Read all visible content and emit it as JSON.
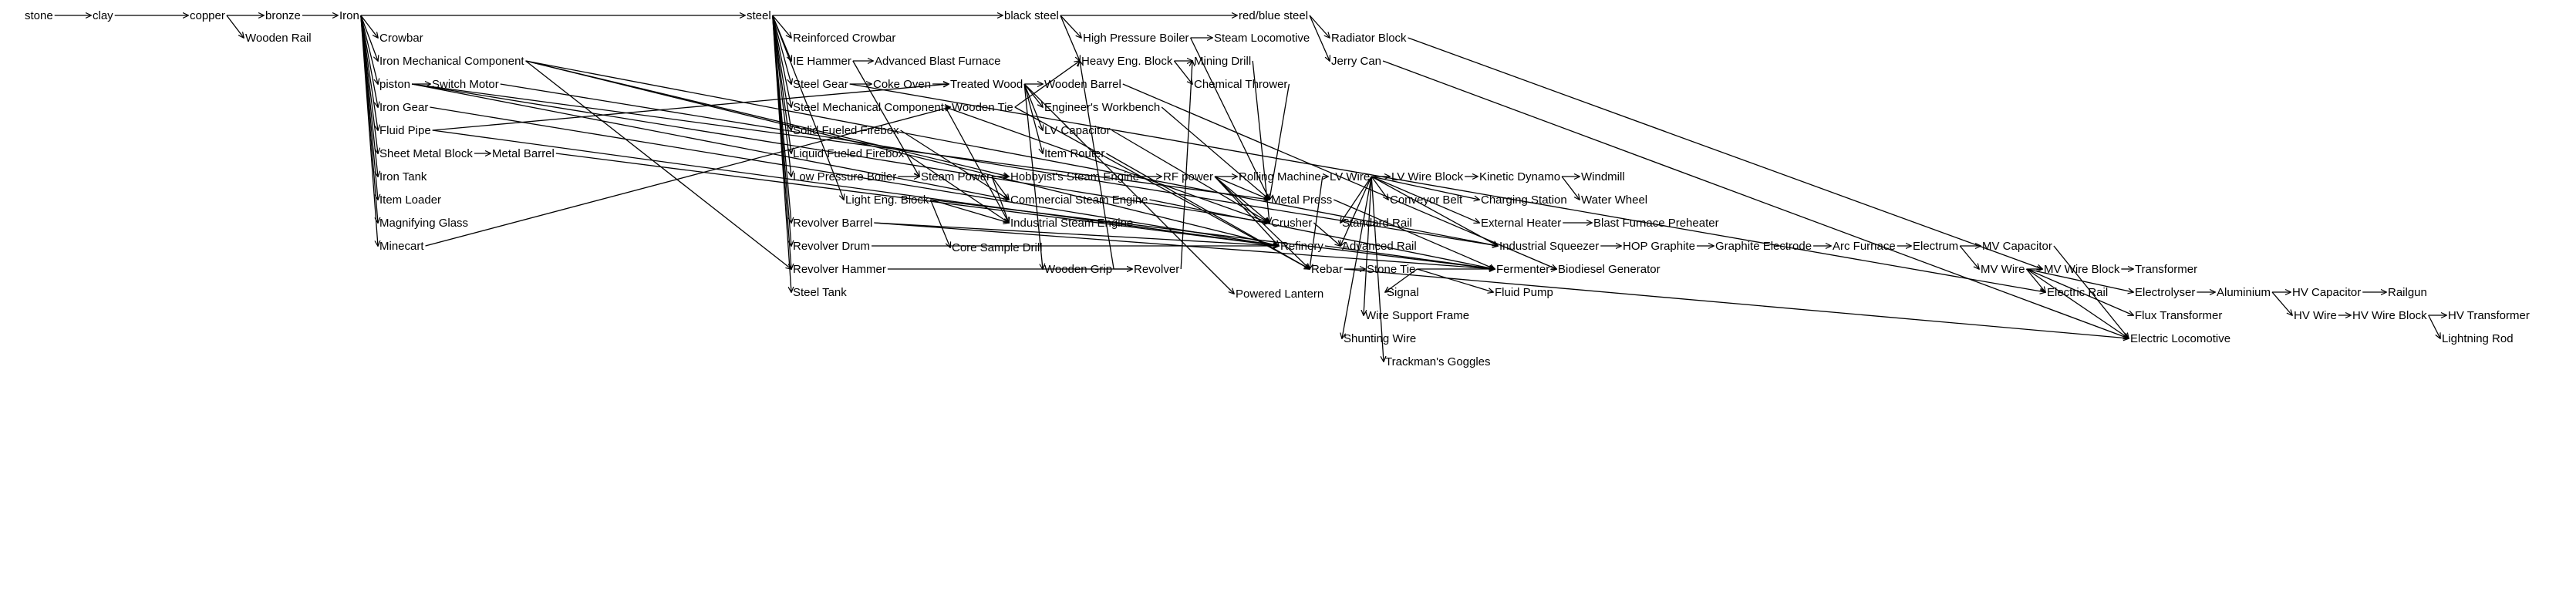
{
  "nodes": [
    {
      "id": "stone",
      "label": "stone"
    },
    {
      "id": "clay",
      "label": "clay"
    },
    {
      "id": "copper",
      "label": "copper"
    },
    {
      "id": "bronze",
      "label": "bronze"
    },
    {
      "id": "iron",
      "label": "Iron"
    },
    {
      "id": "wooden_rail",
      "label": "Wooden Rail"
    },
    {
      "id": "crowbar",
      "label": "Crowbar"
    },
    {
      "id": "iron_mech",
      "label": "Iron Mechanical Component"
    },
    {
      "id": "piston",
      "label": "piston"
    },
    {
      "id": "switch_motor",
      "label": "Switch Motor"
    },
    {
      "id": "iron_gear",
      "label": "Iron Gear"
    },
    {
      "id": "fluid_pipe",
      "label": "Fluid Pipe"
    },
    {
      "id": "sheet_metal_block",
      "label": "Sheet Metal Block"
    },
    {
      "id": "metal_barrel",
      "label": "Metal Barrel"
    },
    {
      "id": "iron_tank",
      "label": "Iron Tank"
    },
    {
      "id": "item_loader",
      "label": "Item Loader"
    },
    {
      "id": "magnifying_glass",
      "label": "Magnifying Glass"
    },
    {
      "id": "minecart",
      "label": "Minecart"
    },
    {
      "id": "steel",
      "label": "steel"
    },
    {
      "id": "reinforced_crowbar",
      "label": "Reinforced Crowbar"
    },
    {
      "id": "ie_hammer",
      "label": "IE Hammer"
    },
    {
      "id": "adv_blast_furnace",
      "label": "Advanced Blast Furnace"
    },
    {
      "id": "steel_gear",
      "label": "Steel Gear"
    },
    {
      "id": "coke_oven",
      "label": "Coke Oven"
    },
    {
      "id": "treated_wood",
      "label": "Treated Wood"
    },
    {
      "id": "steel_mech",
      "label": "Steel Mechanical Component"
    },
    {
      "id": "wooden_tie",
      "label": "Wooden Tie"
    },
    {
      "id": "solid_firebox",
      "label": "Solid Fueled Firebox"
    },
    {
      "id": "liquid_firebox",
      "label": "Liquid Fueled Firebox"
    },
    {
      "id": "low_pressure_boiler",
      "label": "Low Pressure Boiler"
    },
    {
      "id": "steam_power",
      "label": "Steam Power"
    },
    {
      "id": "light_eng_block",
      "label": "Light Eng. Block"
    },
    {
      "id": "revolver_barrel",
      "label": "Revolver Barrel"
    },
    {
      "id": "revolver_drum",
      "label": "Revolver Drum"
    },
    {
      "id": "revolver_hammer",
      "label": "Revolver Hammer"
    },
    {
      "id": "steel_tank",
      "label": "Steel Tank"
    },
    {
      "id": "core_sample_drill",
      "label": "Core Sample Drill"
    },
    {
      "id": "black_steel",
      "label": "black steel"
    },
    {
      "id": "high_pressure_boiler",
      "label": "High Pressure Boiler"
    },
    {
      "id": "steam_locomotive",
      "label": "Steam Locomotive"
    },
    {
      "id": "heavy_eng_block",
      "label": "Heavy Eng. Block"
    },
    {
      "id": "mining_drill",
      "label": "Mining Drill"
    },
    {
      "id": "chemical_thrower",
      "label": "Chemical Thrower"
    },
    {
      "id": "wooden_barrel",
      "label": "Wooden Barrel"
    },
    {
      "id": "engineers_workbench",
      "label": "Engineer's Workbench"
    },
    {
      "id": "lv_capacitor",
      "label": "LV Capacitor"
    },
    {
      "id": "item_router",
      "label": "Item Router"
    },
    {
      "id": "hobbyists_steam_engine",
      "label": "Hobbyist's Steam Engine"
    },
    {
      "id": "commercial_steam_engine",
      "label": "Commercial Steam Engine"
    },
    {
      "id": "industrial_steam_engine",
      "label": "Industrial Steam Engine"
    },
    {
      "id": "wooden_grip",
      "label": "Wooden Grip"
    },
    {
      "id": "revolver",
      "label": "Revolver"
    },
    {
      "id": "rf_power",
      "label": "RF power"
    },
    {
      "id": "powered_lantern",
      "label": "Powered Lantern"
    },
    {
      "id": "red_blue_steel",
      "label": "red/blue steel"
    },
    {
      "id": "radiator_block",
      "label": "Radiator Block"
    },
    {
      "id": "jerry_can",
      "label": "Jerry Can"
    },
    {
      "id": "rolling_machine",
      "label": "Rolling Machine"
    },
    {
      "id": "lv_wire",
      "label": "LV Wire"
    },
    {
      "id": "lv_wire_block",
      "label": "LV Wire Block"
    },
    {
      "id": "kinetic_dynamo",
      "label": "Kinetic Dynamo"
    },
    {
      "id": "windmill",
      "label": "Windmill"
    },
    {
      "id": "metal_press",
      "label": "Metal Press"
    },
    {
      "id": "conveyor_belt",
      "label": "Conveyor Belt"
    },
    {
      "id": "charging_station",
      "label": "Charging Station"
    },
    {
      "id": "water_wheel",
      "label": "Water Wheel"
    },
    {
      "id": "crusher",
      "label": "Crusher"
    },
    {
      "id": "standard_rail",
      "label": "Standard Rail"
    },
    {
      "id": "external_heater",
      "label": "External Heater"
    },
    {
      "id": "blast_furnace_preheater",
      "label": "Blast Furnace Preheater"
    },
    {
      "id": "refinery",
      "label": "Refinery"
    },
    {
      "id": "advanced_rail",
      "label": "Advanced Rail"
    },
    {
      "id": "industrial_squeezer",
      "label": "Industrial Squeezer"
    },
    {
      "id": "hop_graphite",
      "label": "HOP Graphite"
    },
    {
      "id": "graphite_electrode",
      "label": "Graphite Electrode"
    },
    {
      "id": "arc_furnace",
      "label": "Arc Furnace"
    },
    {
      "id": "electrum",
      "label": "Electrum"
    },
    {
      "id": "mv_capacitor",
      "label": "MV Capacitor"
    },
    {
      "id": "rebar",
      "label": "Rebar"
    },
    {
      "id": "stone_tie",
      "label": "Stone Tie"
    },
    {
      "id": "fermenter",
      "label": "Fermenter"
    },
    {
      "id": "biodiesel_generator",
      "label": "Biodiesel Generator"
    },
    {
      "id": "mv_wire",
      "label": "MV Wire"
    },
    {
      "id": "mv_wire_block",
      "label": "MV Wire Block"
    },
    {
      "id": "transformer",
      "label": "Transformer"
    },
    {
      "id": "signal",
      "label": "Signal"
    },
    {
      "id": "fluid_pump",
      "label": "Fluid Pump"
    },
    {
      "id": "electric_rail",
      "label": "Electric Rail"
    },
    {
      "id": "electrolyser",
      "label": "Electrolyser"
    },
    {
      "id": "aluminium",
      "label": "Aluminium"
    },
    {
      "id": "hv_capacitor",
      "label": "HV Capacitor"
    },
    {
      "id": "railgun",
      "label": "Railgun"
    },
    {
      "id": "wire_support_frame",
      "label": "Wire Support Frame"
    },
    {
      "id": "flux_transformer",
      "label": "Flux Transformer"
    },
    {
      "id": "hv_wire",
      "label": "HV Wire"
    },
    {
      "id": "hv_wire_block",
      "label": "HV Wire Block"
    },
    {
      "id": "hv_transformer",
      "label": "HV Transformer"
    },
    {
      "id": "shunting_wire",
      "label": "Shunting Wire"
    },
    {
      "id": "electric_locomotive",
      "label": "Electric Locomotive"
    },
    {
      "id": "lightning_rod",
      "label": "Lightning Rod"
    },
    {
      "id": "trackmans_goggles",
      "label": "Trackman's Goggles"
    }
  ],
  "edges": [
    [
      "stone",
      "clay"
    ],
    [
      "clay",
      "copper"
    ],
    [
      "copper",
      "bronze"
    ],
    [
      "copper",
      "wooden_rail"
    ],
    [
      "bronze",
      "iron"
    ],
    [
      "iron",
      "steel"
    ],
    [
      "iron",
      "crowbar"
    ],
    [
      "iron",
      "iron_mech"
    ],
    [
      "iron",
      "piston"
    ],
    [
      "iron",
      "iron_gear"
    ],
    [
      "iron",
      "fluid_pipe"
    ],
    [
      "iron",
      "sheet_metal_block"
    ],
    [
      "iron",
      "iron_tank"
    ],
    [
      "iron",
      "item_loader"
    ],
    [
      "iron",
      "magnifying_glass"
    ],
    [
      "iron",
      "minecart"
    ],
    [
      "piston",
      "switch_motor"
    ],
    [
      "sheet_metal_block",
      "metal_barrel"
    ],
    [
      "steel",
      "black_steel"
    ],
    [
      "steel",
      "reinforced_crowbar"
    ],
    [
      "steel",
      "ie_hammer"
    ],
    [
      "steel",
      "steel_gear"
    ],
    [
      "steel",
      "steel_mech"
    ],
    [
      "steel",
      "solid_firebox"
    ],
    [
      "steel",
      "liquid_firebox"
    ],
    [
      "steel",
      "low_pressure_boiler"
    ],
    [
      "steel",
      "light_eng_block"
    ],
    [
      "steel",
      "revolver_barrel"
    ],
    [
      "steel",
      "revolver_drum"
    ],
    [
      "steel",
      "revolver_hammer"
    ],
    [
      "steel",
      "steel_tank"
    ],
    [
      "ie_hammer",
      "adv_blast_furnace"
    ],
    [
      "steel_gear",
      "coke_oven"
    ],
    [
      "coke_oven",
      "treated_wood"
    ],
    [
      "treated_wood",
      "wooden_barrel"
    ],
    [
      "treated_wood",
      "engineers_workbench"
    ],
    [
      "treated_wood",
      "lv_capacitor"
    ],
    [
      "treated_wood",
      "item_router"
    ],
    [
      "treated_wood",
      "wooden_grip"
    ],
    [
      "treated_wood",
      "powered_lantern"
    ],
    [
      "steel_mech",
      "wooden_tie"
    ],
    [
      "low_pressure_boiler",
      "steam_power"
    ],
    [
      "steam_power",
      "hobbyists_steam_engine"
    ],
    [
      "steam_power",
      "commercial_steam_engine"
    ],
    [
      "steam_power",
      "industrial_steam_engine"
    ],
    [
      "light_eng_block",
      "core_sample_drill"
    ],
    [
      "light_eng_block",
      "industrial_steam_engine"
    ],
    [
      "revolver_hammer",
      "revolver"
    ],
    [
      "wooden_grip",
      "revolver"
    ],
    [
      "black_steel",
      "red_blue_steel"
    ],
    [
      "black_steel",
      "high_pressure_boiler"
    ],
    [
      "black_steel",
      "heavy_eng_block"
    ],
    [
      "high_pressure_boiler",
      "steam_locomotive"
    ],
    [
      "heavy_eng_block",
      "mining_drill"
    ],
    [
      "heavy_eng_block",
      "chemical_thrower"
    ],
    [
      "red_blue_steel",
      "radiator_block"
    ],
    [
      "red_blue_steel",
      "jerry_can"
    ],
    [
      "hobbyists_steam_engine",
      "rf_power"
    ],
    [
      "rf_power",
      "rolling_machine"
    ],
    [
      "rf_power",
      "metal_press"
    ],
    [
      "rf_power",
      "crusher"
    ],
    [
      "rf_power",
      "refinery"
    ],
    [
      "rf_power",
      "rebar"
    ],
    [
      "rolling_machine",
      "lv_wire"
    ],
    [
      "lv_wire",
      "lv_wire_block"
    ],
    [
      "lv_wire_block",
      "kinetic_dynamo"
    ],
    [
      "kinetic_dynamo",
      "windmill"
    ],
    [
      "kinetic_dynamo",
      "water_wheel"
    ],
    [
      "lv_wire",
      "conveyor_belt"
    ],
    [
      "lv_wire",
      "charging_station"
    ],
    [
      "lv_wire",
      "external_heater"
    ],
    [
      "external_heater",
      "blast_furnace_preheater"
    ],
    [
      "lv_wire",
      "standard_rail"
    ],
    [
      "lv_wire",
      "advanced_rail"
    ],
    [
      "lv_wire",
      "industrial_squeezer"
    ],
    [
      "industrial_squeezer",
      "hop_graphite"
    ],
    [
      "hop_graphite",
      "graphite_electrode"
    ],
    [
      "graphite_electrode",
      "arc_furnace"
    ],
    [
      "arc_furnace",
      "electrum"
    ],
    [
      "electrum",
      "mv_capacitor"
    ],
    [
      "electrum",
      "mv_wire"
    ],
    [
      "mv_wire",
      "mv_wire_block"
    ],
    [
      "mv_wire_block",
      "transformer"
    ],
    [
      "mv_wire",
      "electric_rail"
    ],
    [
      "mv_wire",
      "electrolyser"
    ],
    [
      "electrolyser",
      "aluminium"
    ],
    [
      "aluminium",
      "hv_capacitor"
    ],
    [
      "hv_capacitor",
      "railgun"
    ],
    [
      "aluminium",
      "hv_wire"
    ],
    [
      "hv_wire",
      "hv_wire_block"
    ],
    [
      "hv_wire_block",
      "hv_transformer"
    ],
    [
      "hv_wire_block",
      "lightning_rod"
    ],
    [
      "mv_wire",
      "flux_transformer"
    ],
    [
      "mv_wire",
      "electric_locomotive"
    ],
    [
      "rebar",
      "stone_tie"
    ],
    [
      "stone_tie",
      "fermenter"
    ],
    [
      "fermenter",
      "biodiesel_generator"
    ],
    [
      "stone_tie",
      "signal"
    ],
    [
      "stone_tie",
      "fluid_pump"
    ],
    [
      "lv_wire",
      "wire_support_frame"
    ],
    [
      "lv_wire",
      "shunting_wire"
    ],
    [
      "lv_wire",
      "trackmans_goggles"
    ],
    [
      "iron_mech",
      "hobbyists_steam_engine"
    ],
    [
      "iron_mech",
      "industrial_squeezer"
    ],
    [
      "iron_mech",
      "refinery"
    ],
    [
      "iron_mech",
      "revolver_hammer"
    ],
    [
      "piston",
      "commercial_steam_engine"
    ],
    [
      "piston",
      "metal_press"
    ],
    [
      "piston",
      "crusher"
    ],
    [
      "fluid_pipe",
      "treated_wood"
    ],
    [
      "fluid_pipe",
      "refinery"
    ],
    [
      "minecart",
      "wooden_tie"
    ],
    [
      "steel_mech",
      "industrial_steam_engine"
    ],
    [
      "steel_mech",
      "crusher"
    ],
    [
      "solid_firebox",
      "commercial_steam_engine"
    ],
    [
      "liquid_firebox",
      "industrial_steam_engine"
    ],
    [
      "revolver_barrel",
      "refinery"
    ],
    [
      "revolver_drum",
      "refinery"
    ],
    [
      "wooden_tie",
      "rebar"
    ],
    [
      "wooden_grip",
      "heavy_eng_block"
    ],
    [
      "revolver",
      "mining_drill"
    ],
    [
      "engineers_workbench",
      "metal_press"
    ],
    [
      "lv_capacitor",
      "crusher"
    ],
    [
      "item_router",
      "rebar"
    ],
    [
      "chemical_thrower",
      "metal_press"
    ],
    [
      "mining_drill",
      "crusher"
    ],
    [
      "radiator_block",
      "mv_wire_block"
    ],
    [
      "rolling_machine",
      "rebar"
    ],
    [
      "metal_press",
      "fermenter"
    ],
    [
      "crusher",
      "advanced_rail"
    ],
    [
      "refinery",
      "fermenter"
    ],
    [
      "wooden_barrel",
      "biodiesel_generator"
    ],
    [
      "commercial_steam_engine",
      "fermenter"
    ],
    [
      "steel_gear",
      "electric_rail"
    ],
    [
      "rebar",
      "electric_locomotive"
    ],
    [
      "jerry_can",
      "electric_locomotive"
    ],
    [
      "light_eng_block",
      "fermenter"
    ],
    [
      "mv_capacitor",
      "electric_locomotive"
    ],
    [
      "switch_motor",
      "industrial_squeezer"
    ],
    [
      "iron_gear",
      "refinery"
    ],
    [
      "metal_barrel",
      "refinery"
    ],
    [
      "revolver_barrel",
      "fermenter"
    ],
    [
      "ie_hammer",
      "steam_power"
    ],
    [
      "wooden_tie",
      "heavy_eng_block"
    ],
    [
      "high_pressure_boiler",
      "metal_press"
    ]
  ]
}
